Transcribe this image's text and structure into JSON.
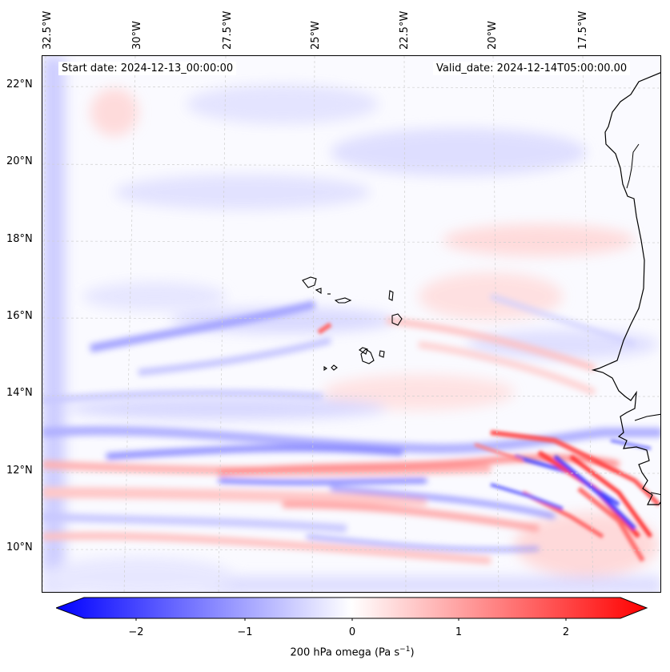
{
  "map": {
    "start_date": "Start date: 2024-12-13_00:00:00",
    "valid_date": "Valid_date: 2024-12-14T05:00:00.00",
    "lon_labels": [
      "32.5°W",
      "30°W",
      "27.5°W",
      "25°W",
      "22.5°W",
      "20°W",
      "17.5°W"
    ],
    "lat_labels": [
      "22°N",
      "20°N",
      "18°N",
      "16°N",
      "14°N",
      "12°N",
      "10°N"
    ],
    "colorbar": {
      "ticks": [
        "−2",
        "−1",
        "0",
        "1",
        "2"
      ],
      "label": "200 hPa omega (Pa s",
      "label_sup": "−1",
      "label_end": ")",
      "range": [
        -2.6,
        2.6
      ],
      "negative_color": "#0000ff",
      "positive_color": "#ff0000",
      "zero_color": "#ffffff"
    }
  }
}
